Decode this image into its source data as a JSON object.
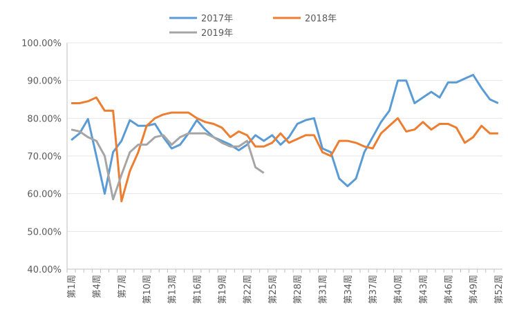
{
  "chart_data": {
    "type": "line",
    "categories": [
      "第1周",
      null,
      null,
      "第4周",
      null,
      null,
      "第7周",
      null,
      null,
      "第10周",
      null,
      null,
      "第13周",
      null,
      null,
      "第16周",
      null,
      null,
      "第19周",
      null,
      null,
      "第22周",
      null,
      null,
      "第25周",
      null,
      null,
      "第28周",
      null,
      null,
      "第31周",
      null,
      null,
      "第34周",
      null,
      null,
      "第37周",
      null,
      null,
      "第40周",
      null,
      null,
      "第43周",
      null,
      null,
      "第46周",
      null,
      null,
      "第49周",
      null,
      null,
      "第52周"
    ],
    "series": [
      {
        "name": "2017年",
        "color": "#5b9bd5",
        "values": [
          74.2,
          76,
          79.8,
          70,
          60,
          71,
          74,
          79.5,
          78,
          78,
          78.5,
          75,
          72,
          73,
          76,
          79.5,
          77,
          75,
          74,
          73,
          71.5,
          73,
          75.5,
          74,
          75.5,
          73,
          75,
          78.5,
          79.5,
          80,
          72,
          71,
          64,
          62,
          64,
          71,
          75,
          79,
          82,
          90,
          90,
          84,
          85.5,
          87,
          85.5,
          89.5,
          89.5,
          90.5,
          91.5,
          88,
          85,
          84
        ]
      },
      {
        "name": "2018年",
        "color": "#ed7d31",
        "values": [
          84,
          84,
          84.5,
          85.5,
          82,
          82,
          58,
          66,
          71,
          78,
          80,
          81,
          81.5,
          81.5,
          81.5,
          80,
          79,
          78.5,
          77.5,
          75,
          76.5,
          75.5,
          72.5,
          72.5,
          73.5,
          76,
          73.5,
          74.5,
          75.5,
          75.5,
          71,
          70,
          74,
          74,
          73.5,
          72.5,
          72,
          76,
          78,
          80,
          76.5,
          77,
          79,
          77,
          78.5,
          78.5,
          77.5,
          73.5,
          75,
          78,
          76,
          76
        ]
      },
      {
        "name": "2019年",
        "color": "#a5a5a5",
        "values": [
          77,
          76.5,
          75,
          74,
          70,
          58.5,
          65,
          71,
          73,
          73,
          75,
          75.5,
          73,
          75,
          76,
          76,
          76,
          75,
          73.5,
          72.5,
          72.5,
          74,
          67,
          65.5,
          null,
          null,
          null,
          null,
          null,
          null,
          null,
          null,
          null,
          null,
          null,
          null,
          null,
          null,
          null,
          null,
          null,
          null,
          null,
          null,
          null,
          null,
          null,
          null,
          null,
          null,
          null,
          null
        ]
      }
    ],
    "ylim": [
      40,
      100
    ],
    "yticks": [
      {
        "value": 40,
        "label": "40.00%"
      },
      {
        "value": 50,
        "label": "50.00%"
      },
      {
        "value": 60,
        "label": "60.00%"
      },
      {
        "value": 70,
        "label": "70.00%"
      },
      {
        "value": 80,
        "label": "80.00%"
      },
      {
        "value": 90,
        "label": "90.00%"
      },
      {
        "value": 100,
        "label": "100.00%"
      }
    ],
    "grid": true,
    "legend": "top"
  }
}
